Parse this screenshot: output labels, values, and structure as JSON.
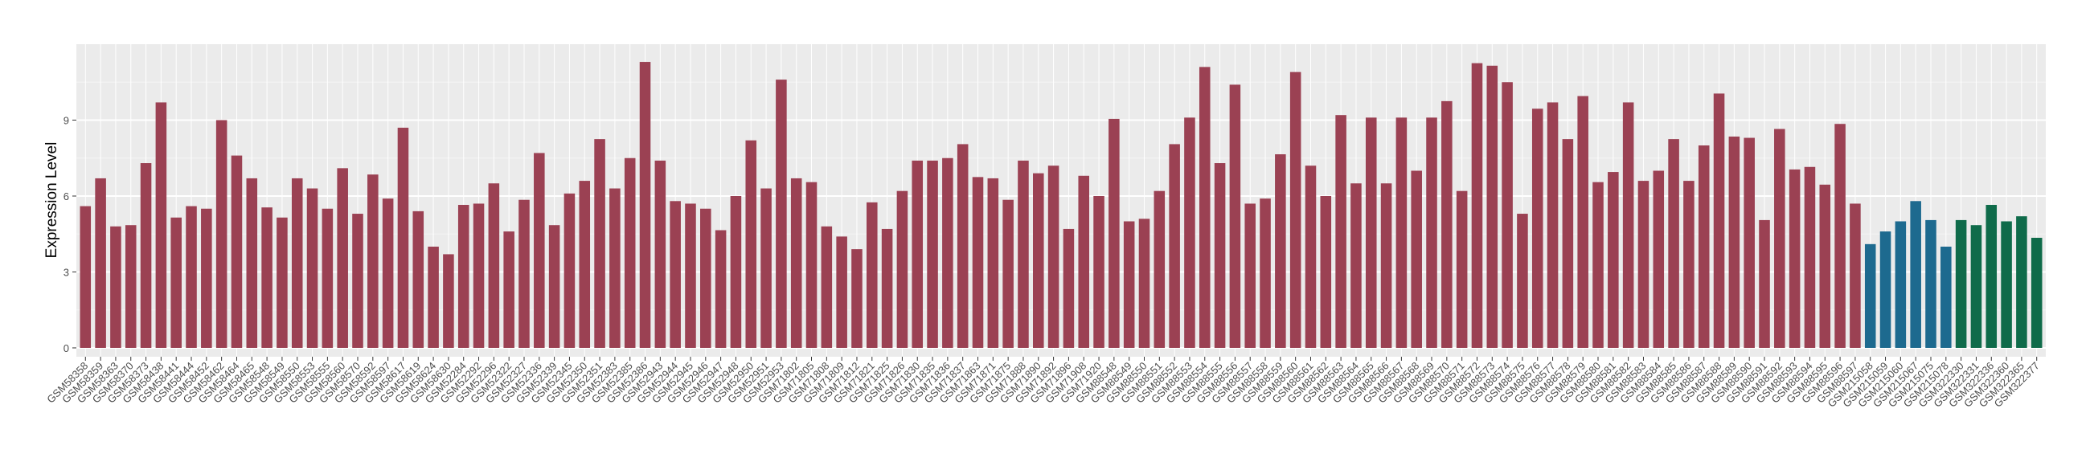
{
  "chart_data": {
    "type": "bar",
    "y_label": "Expression Level",
    "ylim": [
      -0.35,
      12.0
    ],
    "yticks": [
      0,
      3,
      6,
      9
    ],
    "yminor": [
      1.5,
      4.5,
      7.5,
      10.5
    ],
    "grid": true,
    "series": [
      {
        "color": "#9b4153",
        "categories": [
          "GSM58358",
          "GSM58359",
          "GSM58363",
          "GSM58370",
          "GSM58373",
          "GSM58438",
          "GSM58441",
          "GSM58444",
          "GSM58452",
          "GSM58462",
          "GSM58464",
          "GSM58465",
          "GSM58548",
          "GSM58549",
          "GSM58550",
          "GSM58553",
          "GSM58555",
          "GSM58560",
          "GSM58570",
          "GSM58592",
          "GSM58597",
          "GSM58617",
          "GSM58619",
          "GSM58624",
          "GSM58630",
          "GSM52284",
          "GSM52292",
          "GSM52296",
          "GSM52322",
          "GSM52327",
          "GSM52336",
          "GSM52339",
          "GSM52345",
          "GSM52350",
          "GSM52351",
          "GSM52383",
          "GSM52385",
          "GSM52386",
          "GSM52943",
          "GSM52944",
          "GSM52945",
          "GSM52946",
          "GSM52947",
          "GSM52948",
          "GSM52950",
          "GSM52951",
          "GSM52953",
          "GSM71802",
          "GSM71805",
          "GSM71808",
          "GSM71809",
          "GSM71812",
          "GSM71821",
          "GSM71825",
          "GSM71826",
          "GSM71830",
          "GSM71835",
          "GSM71836",
          "GSM71837",
          "GSM71863",
          "GSM71871",
          "GSM71875",
          "GSM71888",
          "GSM71890",
          "GSM71892",
          "GSM71896",
          "GSM71908",
          "GSM71920",
          "GSM88548",
          "GSM88549",
          "GSM88550",
          "GSM88551",
          "GSM88552",
          "GSM88553",
          "GSM88554",
          "GSM88555",
          "GSM88556",
          "GSM88557",
          "GSM88558",
          "GSM88559",
          "GSM88560",
          "GSM88561",
          "GSM88562",
          "GSM88563",
          "GSM88564",
          "GSM88565",
          "GSM88566",
          "GSM88567",
          "GSM88568",
          "GSM88569",
          "GSM88570",
          "GSM88571",
          "GSM88572",
          "GSM88573",
          "GSM88574",
          "GSM88575",
          "GSM88576",
          "GSM88577",
          "GSM88578",
          "GSM88579",
          "GSM88580",
          "GSM88581",
          "GSM88582",
          "GSM88583",
          "GSM88584",
          "GSM88585",
          "GSM88586",
          "GSM88587",
          "GSM88588",
          "GSM88589",
          "GSM88590",
          "GSM88591",
          "GSM88592",
          "GSM88593",
          "GSM88594",
          "GSM88595",
          "GSM88596",
          "GSM88597"
        ],
        "values": [
          5.6,
          6.7,
          4.8,
          4.85,
          7.3,
          9.7,
          5.15,
          5.6,
          5.5,
          9.0,
          7.6,
          6.7,
          5.55,
          5.15,
          6.7,
          6.3,
          5.5,
          7.1,
          5.3,
          6.85,
          5.9,
          8.7,
          5.4,
          4.0,
          3.7,
          5.65,
          5.7,
          6.5,
          4.6,
          5.85,
          7.7,
          4.85,
          6.1,
          6.6,
          8.25,
          6.3,
          7.5,
          11.3,
          7.4,
          5.8,
          5.7,
          5.5,
          4.65,
          6.0,
          8.2,
          6.3,
          10.6,
          6.7,
          6.55,
          4.8,
          4.4,
          3.9,
          5.75,
          4.7,
          6.2,
          7.4,
          7.4,
          7.5,
          8.05,
          6.75,
          6.7,
          5.85,
          7.4,
          6.9,
          7.2,
          4.7,
          6.8,
          6.0,
          9.05,
          5.0,
          5.1,
          6.2,
          8.05,
          9.1,
          11.1,
          7.3,
          10.4,
          5.7,
          5.9,
          7.65,
          10.9,
          7.2,
          6.0,
          9.2,
          6.5,
          9.1,
          6.5,
          9.1,
          7.0,
          9.1,
          9.75,
          6.2,
          11.25,
          11.15,
          10.5,
          5.3,
          9.45,
          9.7,
          8.25,
          9.95,
          6.55,
          6.95,
          9.7,
          6.6,
          7.0,
          8.25,
          6.6,
          8.0,
          10.05,
          8.35,
          8.3,
          5.05,
          8.65,
          7.05,
          7.15,
          6.45,
          8.85,
          5.7
        ]
      },
      {
        "color": "#1d6a8f",
        "categories": [
          "GSM215058",
          "GSM215059",
          "GSM215060",
          "GSM215067",
          "GSM215075",
          "GSM215078"
        ],
        "values": [
          4.1,
          4.6,
          5.0,
          5.8,
          5.05,
          4.0
        ]
      },
      {
        "color": "#0f6b4a",
        "categories": [
          "GSM322330",
          "GSM322331",
          "GSM322336",
          "GSM322360",
          "GSM322365",
          "GSM322377"
        ],
        "values": [
          5.05,
          4.85,
          5.65,
          5.0,
          5.2,
          4.35
        ]
      }
    ]
  }
}
